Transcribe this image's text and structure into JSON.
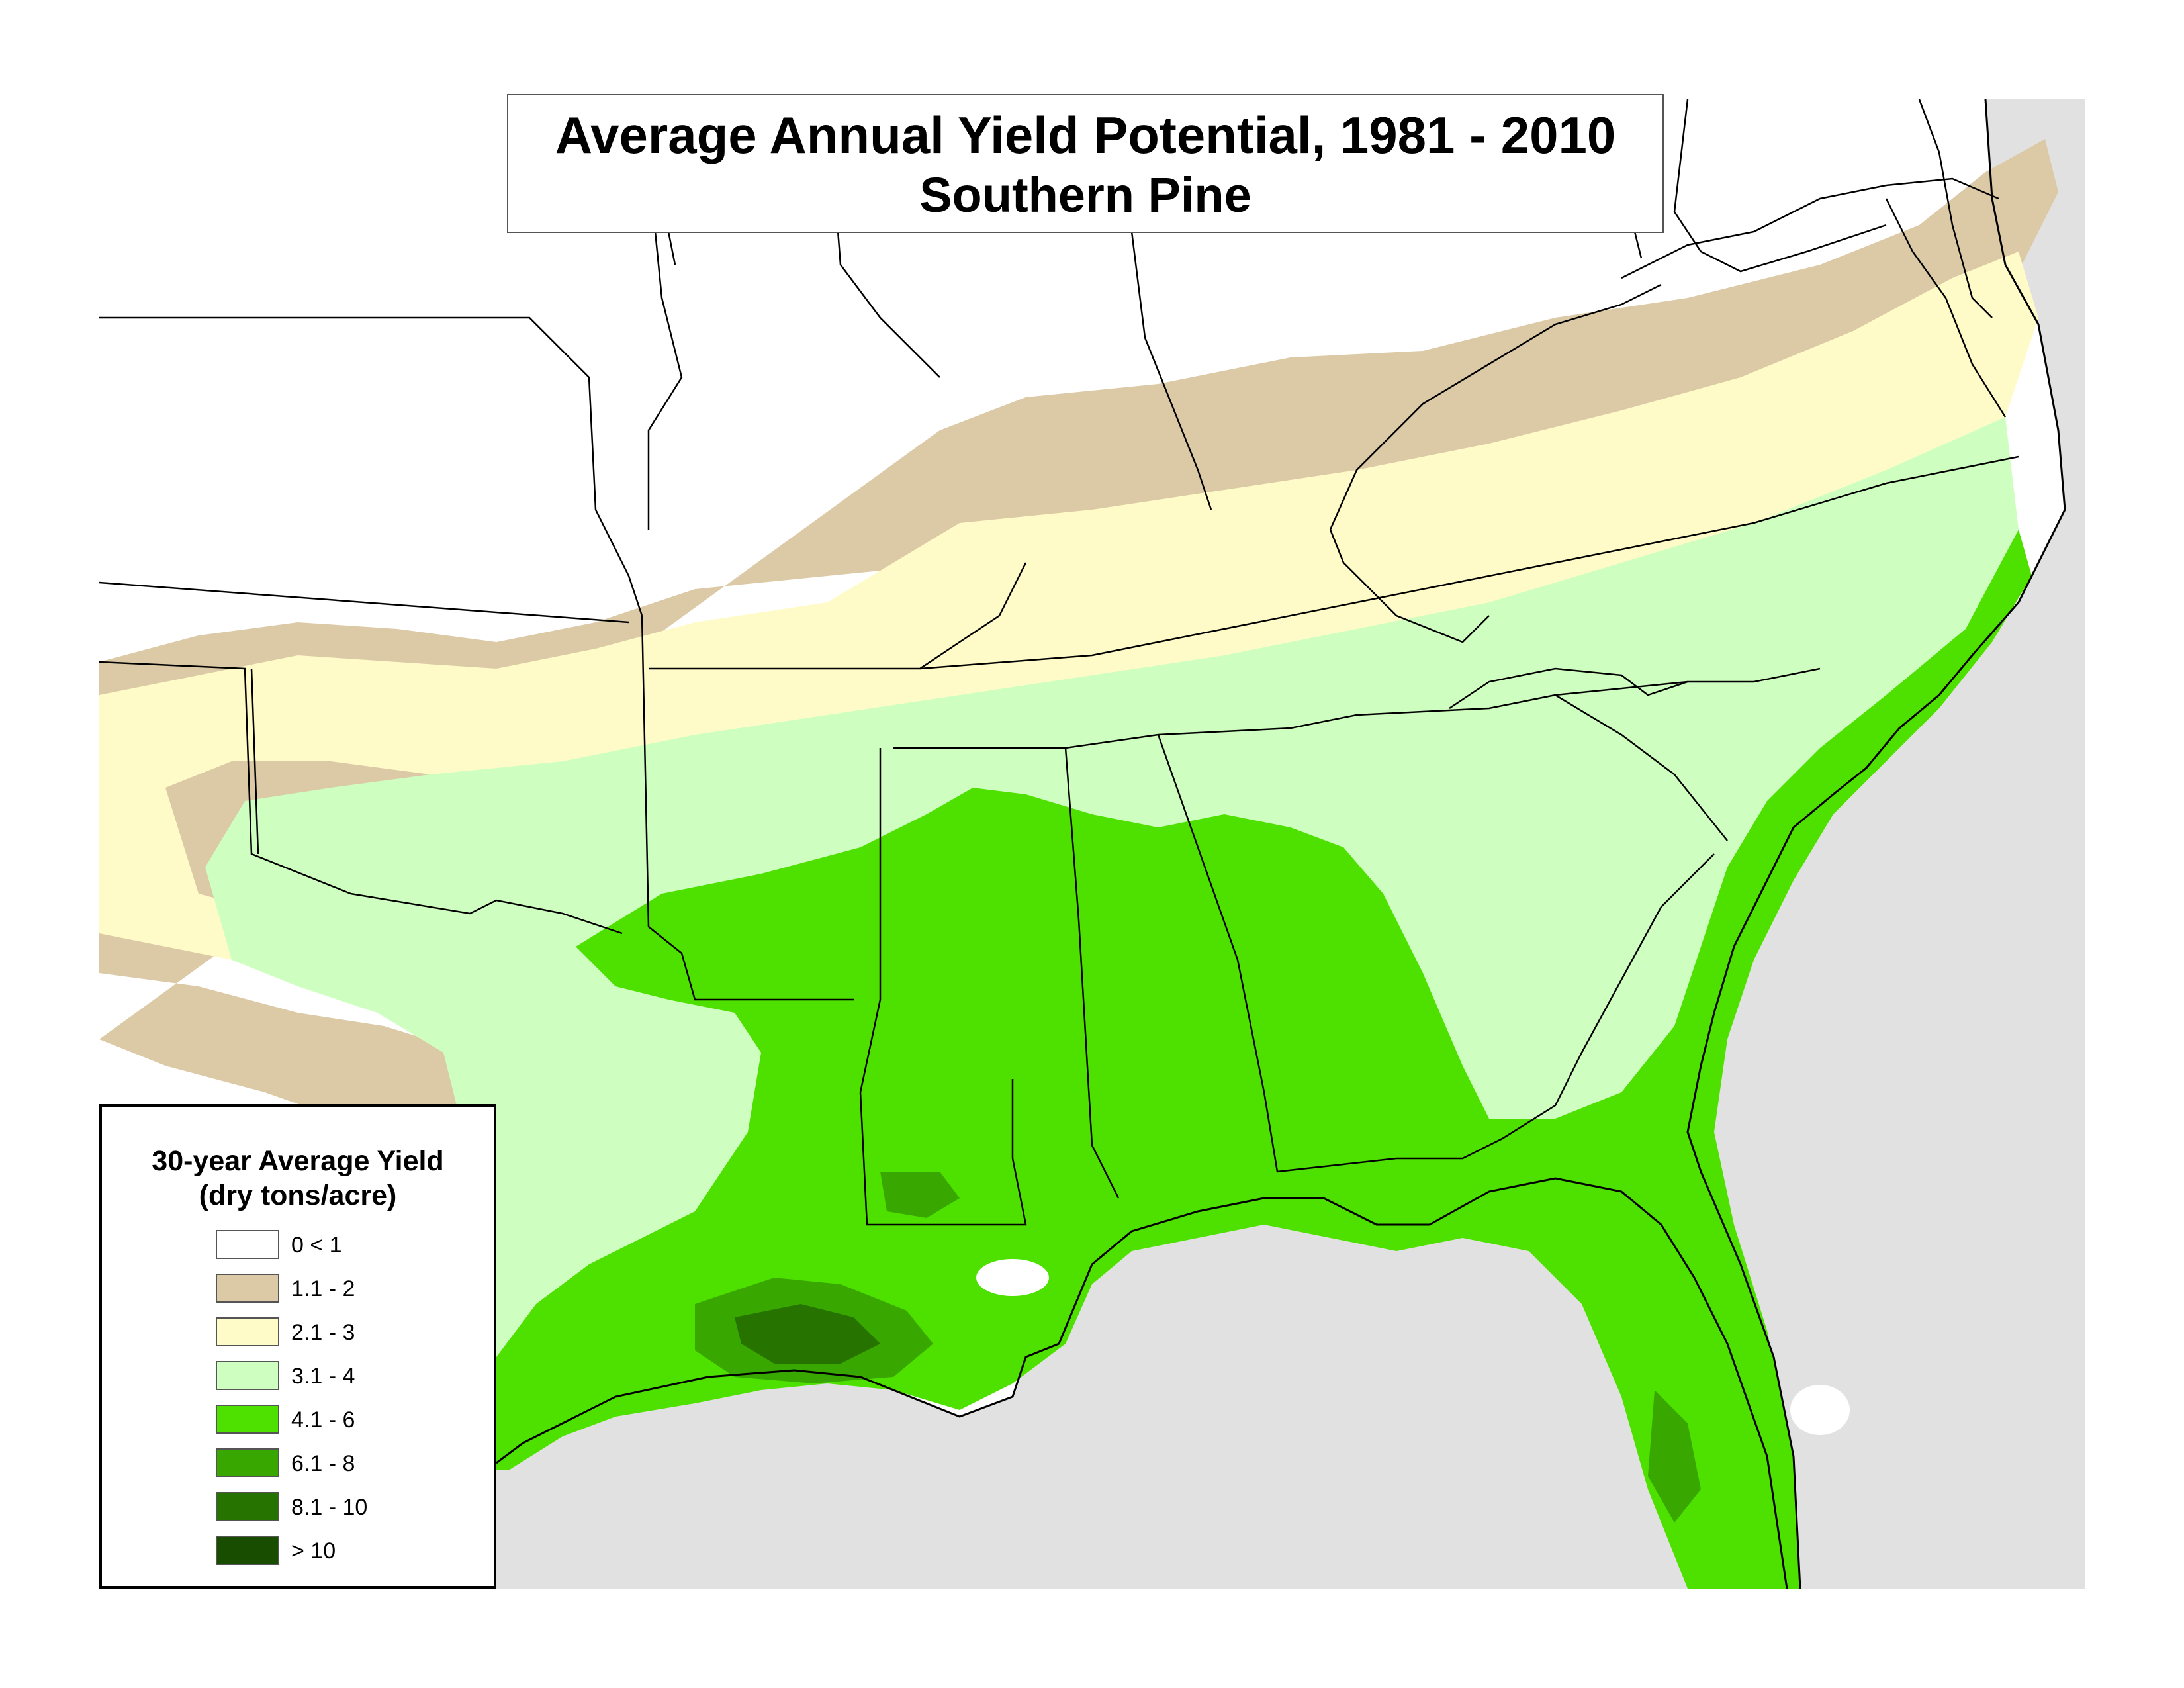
{
  "title": {
    "line1": "Average Annual Yield Potential, 1981 - 2010",
    "line2": "Southern Pine"
  },
  "legend": {
    "title_line1": "30-year Average Yield",
    "title_line2": "(dry tons/acre)",
    "items": [
      {
        "label": "0 < 1",
        "color": "#ffffff"
      },
      {
        "label": "1.1 - 2",
        "color": "#dcc9a6"
      },
      {
        "label": "2.1 - 3",
        "color": "#fffbc8"
      },
      {
        "label": "3.1 - 4",
        "color": "#cfffc0"
      },
      {
        "label": "4.1 - 6",
        "color": "#4ee100"
      },
      {
        "label": "6.1 - 8",
        "color": "#38a800"
      },
      {
        "label": "8.1 - 10",
        "color": "#267300"
      },
      {
        "label": "> 10",
        "color": "#184d00"
      }
    ]
  },
  "map": {
    "water_color": "#e1e1e1",
    "border_color": "#000000"
  }
}
